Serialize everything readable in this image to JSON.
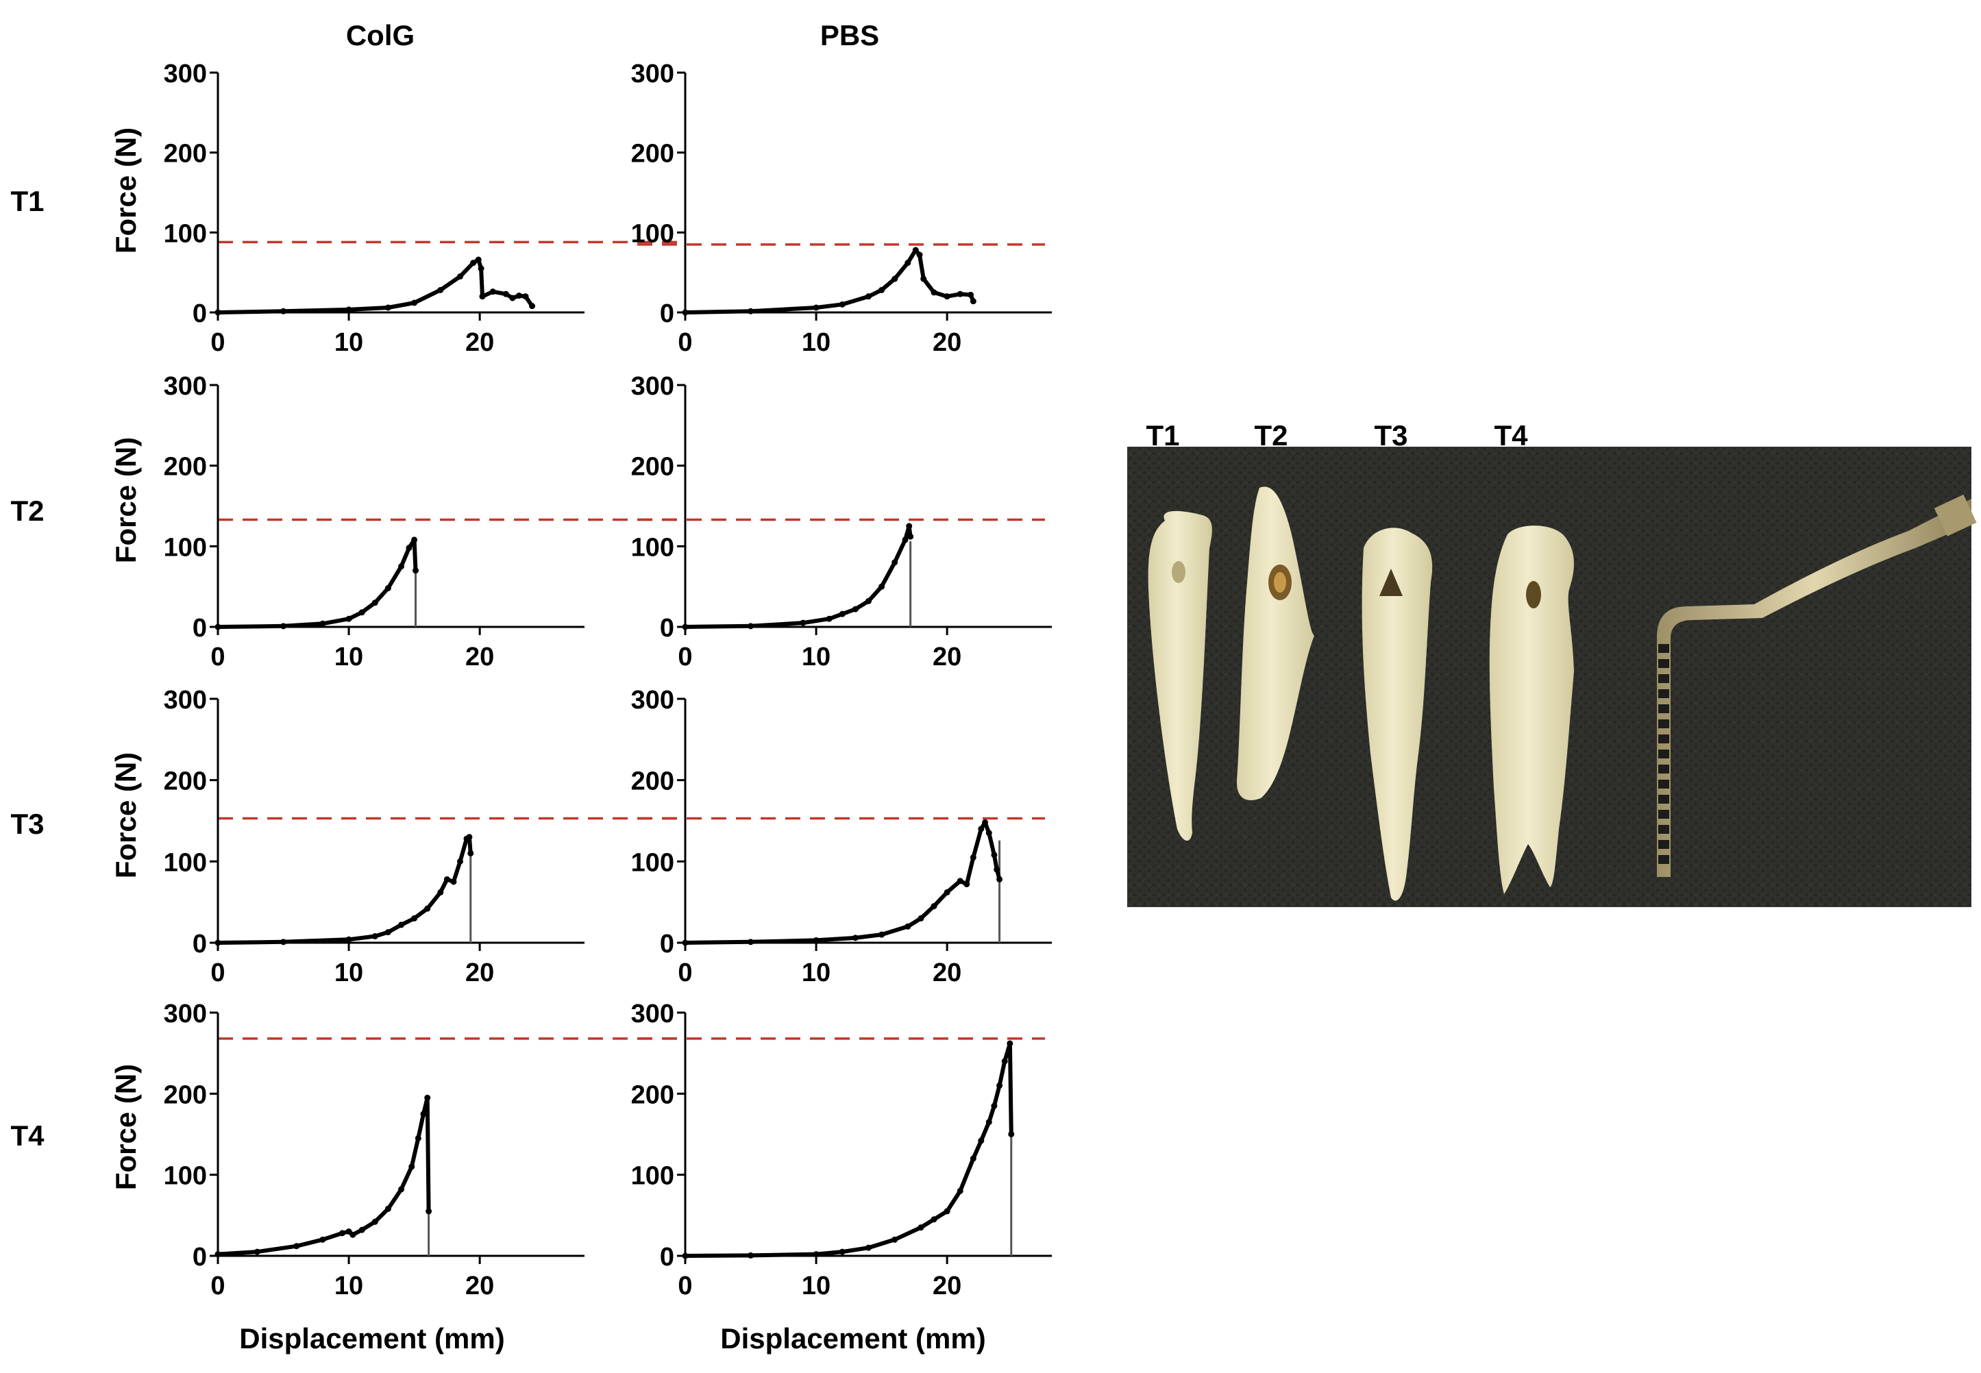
{
  "chart_data": {
    "type": "line",
    "columns": [
      "ColG",
      "PBS"
    ],
    "rows": [
      "T1",
      "T2",
      "T3",
      "T4"
    ],
    "ylabel": "Force (N)",
    "xlabel": "Displacement (mm)",
    "xlim": [
      0,
      28
    ],
    "ylim": [
      0,
      300
    ],
    "xticks": [
      0,
      10,
      20
    ],
    "yticks": [
      0,
      100,
      200,
      300
    ],
    "threshold_color": "#c0392b",
    "panels": [
      {
        "id": "T1-ColG",
        "row": "T1",
        "column": "ColG",
        "threshold": 88,
        "points": [
          [
            0,
            0
          ],
          [
            5,
            1.5
          ],
          [
            10,
            3.5
          ],
          [
            13,
            6
          ],
          [
            15,
            12
          ],
          [
            17,
            28
          ],
          [
            18.5,
            45
          ],
          [
            19.5,
            62
          ],
          [
            19.9,
            66
          ],
          [
            20.1,
            55
          ],
          [
            20.2,
            20
          ],
          [
            21,
            26
          ],
          [
            22,
            23
          ],
          [
            22.5,
            18
          ],
          [
            23,
            21
          ],
          [
            23.5,
            20
          ],
          [
            24,
            8
          ]
        ]
      },
      {
        "id": "T1-PBS",
        "row": "T1",
        "column": "PBS",
        "threshold": 85,
        "points": [
          [
            0,
            0
          ],
          [
            5,
            1.5
          ],
          [
            10,
            6
          ],
          [
            12,
            10
          ],
          [
            14,
            20
          ],
          [
            15,
            28
          ],
          [
            16,
            42
          ],
          [
            17,
            62
          ],
          [
            17.6,
            78
          ],
          [
            17.9,
            72
          ],
          [
            18.2,
            42
          ],
          [
            19,
            25
          ],
          [
            20,
            20
          ],
          [
            21,
            23
          ],
          [
            21.8,
            22
          ],
          [
            22,
            14
          ]
        ]
      },
      {
        "id": "T2-ColG",
        "row": "T2",
        "column": "ColG",
        "threshold": 133,
        "points": [
          [
            0,
            0
          ],
          [
            5,
            1
          ],
          [
            8,
            4
          ],
          [
            10,
            10
          ],
          [
            11,
            18
          ],
          [
            12,
            30
          ],
          [
            13,
            48
          ],
          [
            14,
            75
          ],
          [
            14.6,
            98
          ],
          [
            15,
            108
          ],
          [
            15.1,
            70
          ]
        ],
        "drop_at": 15.1
      },
      {
        "id": "T2-PBS",
        "row": "T2",
        "column": "PBS",
        "threshold": 133,
        "points": [
          [
            0,
            0
          ],
          [
            5,
            1
          ],
          [
            9,
            5
          ],
          [
            11,
            10
          ],
          [
            12,
            16
          ],
          [
            13,
            22
          ],
          [
            14,
            32
          ],
          [
            15,
            50
          ],
          [
            16,
            80
          ],
          [
            16.8,
            108
          ],
          [
            17.1,
            125
          ],
          [
            17.2,
            112
          ]
        ],
        "drop_at": 17.2
      },
      {
        "id": "T3-ColG",
        "row": "T3",
        "column": "ColG",
        "threshold": 153,
        "points": [
          [
            0,
            0
          ],
          [
            5,
            1
          ],
          [
            10,
            4
          ],
          [
            12,
            8
          ],
          [
            13,
            13
          ],
          [
            14,
            22
          ],
          [
            15,
            30
          ],
          [
            16,
            42
          ],
          [
            17,
            62
          ],
          [
            17.5,
            78
          ],
          [
            18,
            75
          ],
          [
            18.5,
            100
          ],
          [
            19,
            128
          ],
          [
            19.2,
            130
          ],
          [
            19.3,
            110
          ]
        ],
        "drop_at": 19.3
      },
      {
        "id": "T3-PBS",
        "row": "T3",
        "column": "PBS",
        "threshold": 153,
        "points": [
          [
            0,
            0
          ],
          [
            5,
            1
          ],
          [
            10,
            3
          ],
          [
            13,
            6
          ],
          [
            15,
            10
          ],
          [
            17,
            20
          ],
          [
            18,
            30
          ],
          [
            19,
            45
          ],
          [
            20,
            62
          ],
          [
            21,
            76
          ],
          [
            21.5,
            72
          ],
          [
            22,
            105
          ],
          [
            22.6,
            140
          ],
          [
            22.9,
            148
          ],
          [
            23.2,
            135
          ],
          [
            23.6,
            108
          ],
          [
            23.8,
            90
          ],
          [
            24,
            78
          ]
        ],
        "drop_at": 24
      },
      {
        "id": "T4-ColG",
        "row": "T4",
        "column": "ColG",
        "threshold": 268,
        "points": [
          [
            0,
            2
          ],
          [
            3,
            5
          ],
          [
            6,
            12
          ],
          [
            8,
            20
          ],
          [
            9.5,
            28
          ],
          [
            10,
            30
          ],
          [
            10.3,
            26
          ],
          [
            11,
            32
          ],
          [
            12,
            42
          ],
          [
            13,
            58
          ],
          [
            14,
            82
          ],
          [
            14.8,
            110
          ],
          [
            15.3,
            145
          ],
          [
            15.7,
            175
          ],
          [
            16,
            195
          ],
          [
            16.1,
            55
          ]
        ],
        "drop_at": 16.1
      },
      {
        "id": "T4-PBS",
        "row": "T4",
        "column": "PBS",
        "threshold": 268,
        "points": [
          [
            0,
            0
          ],
          [
            5,
            0.5
          ],
          [
            10,
            2
          ],
          [
            12,
            5
          ],
          [
            14,
            10
          ],
          [
            16,
            20
          ],
          [
            18,
            35
          ],
          [
            19,
            45
          ],
          [
            20,
            55
          ],
          [
            21,
            80
          ],
          [
            22,
            120
          ],
          [
            22.6,
            142
          ],
          [
            23.2,
            165
          ],
          [
            23.6,
            185
          ],
          [
            24,
            210
          ],
          [
            24.4,
            240
          ],
          [
            24.8,
            262
          ],
          [
            24.9,
            150
          ]
        ],
        "drop_at": 24.9
      }
    ],
    "photo": {
      "labels": [
        "T1",
        "T2",
        "T3",
        "T4"
      ],
      "background_color": "#34352f",
      "specimen_color": "#eee8c4",
      "probe_color": "#c8b88a"
    }
  }
}
